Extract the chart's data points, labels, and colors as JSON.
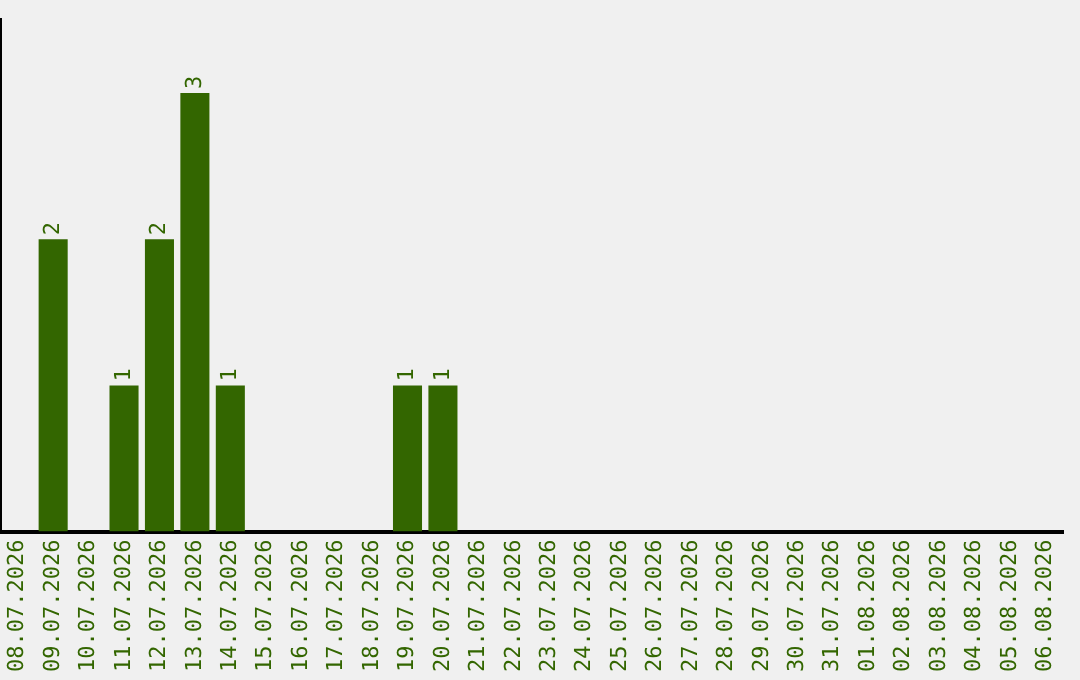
{
  "chart_data": {
    "type": "bar",
    "categories": [
      "08.07.2026",
      "09.07.2026",
      "10.07.2026",
      "11.07.2026",
      "12.07.2026",
      "13.07.2026",
      "14.07.2026",
      "15.07.2026",
      "16.07.2026",
      "17.07.2026",
      "18.07.2026",
      "19.07.2026",
      "20.07.2026",
      "21.07.2026",
      "22.07.2026",
      "23.07.2026",
      "24.07.2026",
      "25.07.2026",
      "26.07.2026",
      "27.07.2026",
      "28.07.2026",
      "29.07.2026",
      "30.07.2026",
      "31.07.2026",
      "01.08.2026",
      "02.08.2026",
      "03.08.2026",
      "04.08.2026",
      "05.08.2026",
      "06.08.2026"
    ],
    "values": [
      0,
      2,
      0,
      1,
      2,
      3,
      1,
      0,
      0,
      0,
      0,
      1,
      1,
      0,
      0,
      0,
      0,
      0,
      0,
      0,
      0,
      0,
      0,
      0,
      0,
      0,
      0,
      0,
      0,
      0
    ],
    "value_labels": [
      null,
      "2",
      null,
      "1",
      "2",
      "3",
      "1",
      null,
      null,
      null,
      null,
      "1",
      "1",
      null,
      null,
      null,
      null,
      null,
      null,
      null,
      null,
      null,
      null,
      null,
      null,
      null,
      null,
      null,
      null,
      null
    ],
    "color": "#336600",
    "grid": false,
    "legend": false,
    "tick_labels": "x"
  }
}
